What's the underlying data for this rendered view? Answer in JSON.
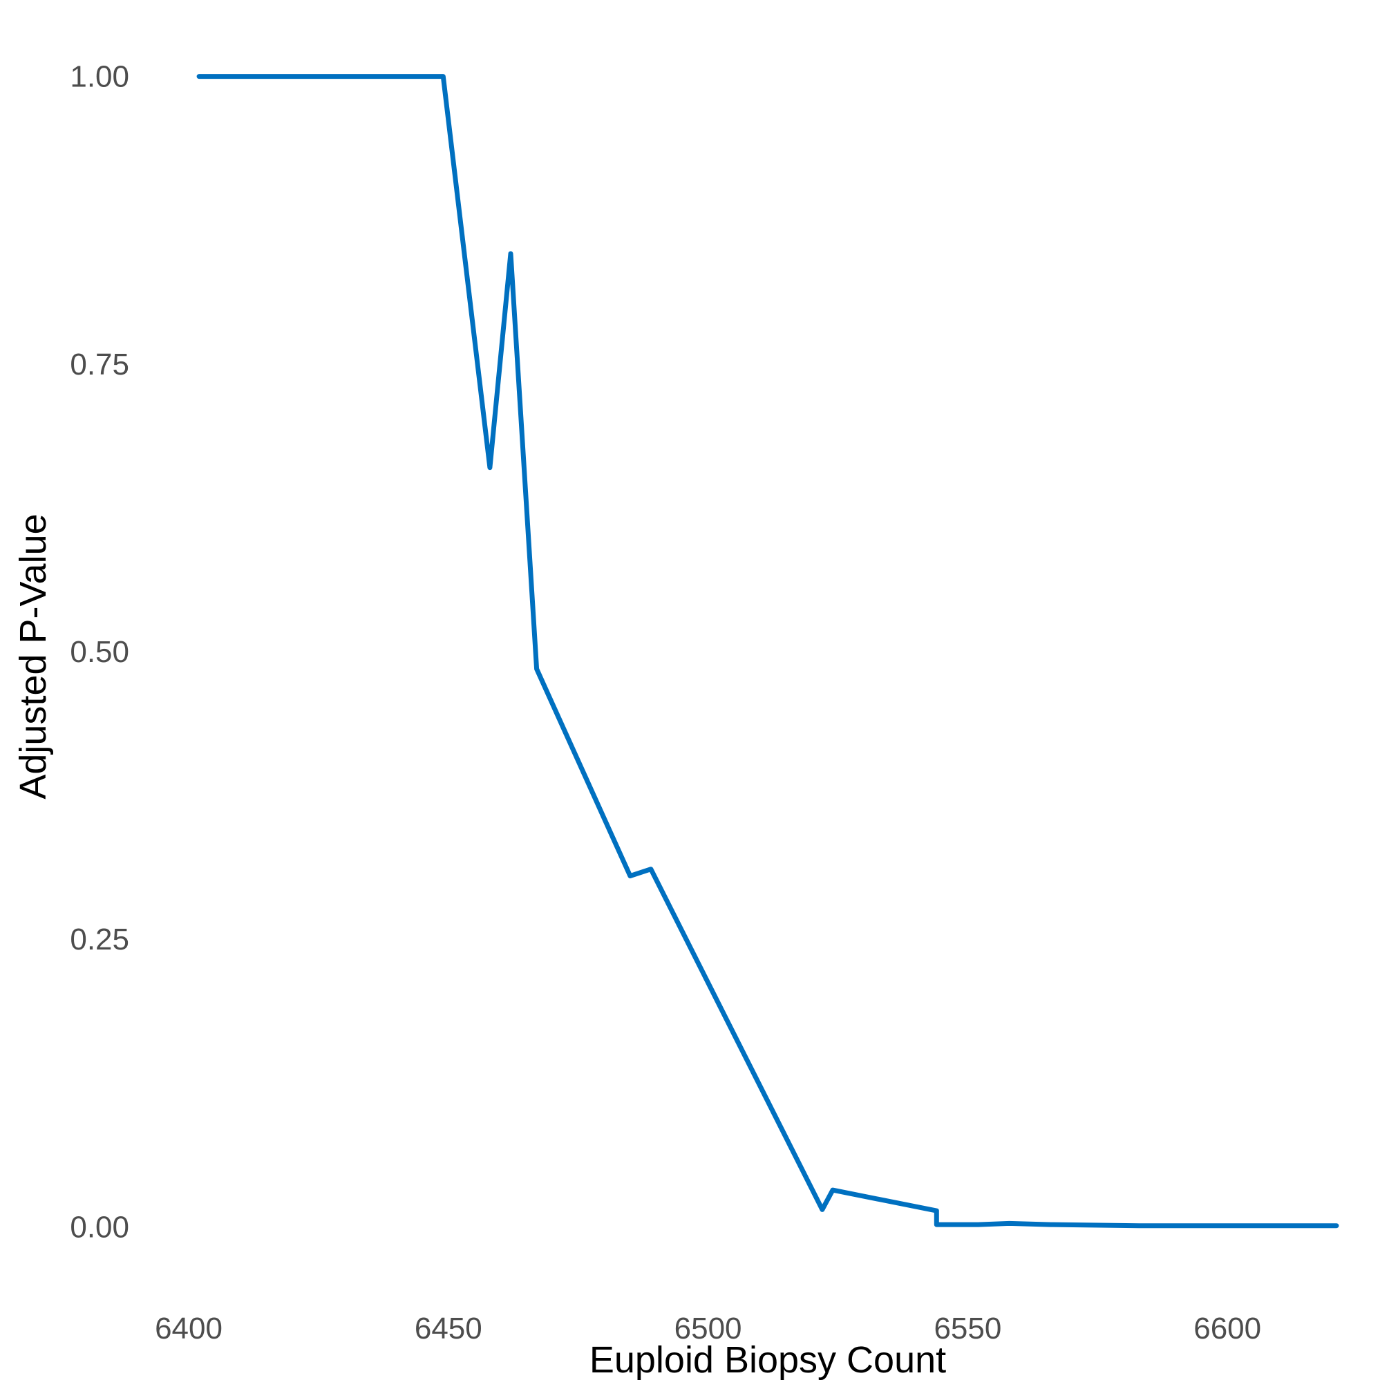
{
  "chart_data": {
    "type": "line",
    "title": "",
    "xlabel": "Euploid Biopsy Count",
    "ylabel": "Adjusted P-Value",
    "xlim": [
      6398,
      6621
    ],
    "ylim": [
      -0.04,
      1.04
    ],
    "xticks": [
      6400,
      6450,
      6500,
      6550,
      6600
    ],
    "yticks": [
      0.0,
      0.25,
      0.5,
      0.75,
      1.0
    ],
    "xtick_labels": [
      "6400",
      "6450",
      "6500",
      "6550",
      "6600"
    ],
    "ytick_labels": [
      "0.00",
      "0.25",
      "0.50",
      "0.75",
      "1.00"
    ],
    "grid": false,
    "legend": "none",
    "series": [
      {
        "color": "#0070c0",
        "x": [
          6402,
          6449,
          6458,
          6462,
          6467,
          6485,
          6489,
          6522,
          6524,
          6544,
          6544,
          6552,
          6558,
          6566,
          6583,
          6621
        ],
        "y": [
          1.0,
          1.0,
          0.66,
          0.846,
          0.485,
          0.305,
          0.311,
          0.015,
          0.032,
          0.014,
          0.002,
          0.002,
          0.003,
          0.002,
          0.001,
          0.001
        ]
      }
    ]
  }
}
